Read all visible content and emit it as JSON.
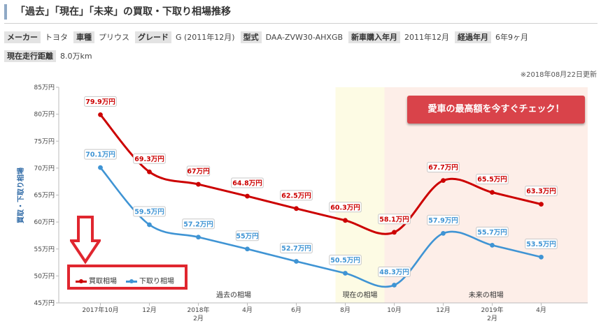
{
  "title": "「過去」「現在」「未来」の買取・下取り相場推移",
  "specs_row1": [
    {
      "key": "メーカー",
      "value": "トヨタ"
    },
    {
      "key": "車種",
      "value": "プリウス"
    },
    {
      "key": "グレード",
      "value": "G (2011年12月)"
    },
    {
      "key": "型式",
      "value": "DAA-ZVW30-AHXGB"
    },
    {
      "key": "新車購入年月",
      "value": "2011年12月"
    },
    {
      "key": "経過年月",
      "value": "6年9ヶ月"
    }
  ],
  "specs_row2": [
    {
      "key": "現在走行距離",
      "value": "8.0万km"
    }
  ],
  "updated": "※2018年08月22日更新",
  "cta_label": "愛車の最高額を今すぐチェック！",
  "colors": {
    "buy": "#cc0000",
    "trade": "#3f94d4",
    "present_band": "#fdfbe4",
    "future_band": "#fdeee8",
    "highlight": "#e0262f",
    "cta": "#d9434a"
  },
  "chart_data": {
    "type": "line",
    "ylabel": "買取・下取り相場",
    "ylim": [
      45,
      85
    ],
    "yticks": [
      45,
      50,
      55,
      60,
      65,
      70,
      75,
      80,
      85
    ],
    "ytick_labels": [
      "45万円",
      "50万円",
      "55万円",
      "60万円",
      "65万円",
      "70万円",
      "75万円",
      "80万円",
      "85万円"
    ],
    "x_labels": [
      {
        "pos": 0,
        "line1": "2017年10月",
        "line2": ""
      },
      {
        "pos": 2,
        "line1": "12月",
        "line2": ""
      },
      {
        "pos": 4,
        "line1": "2018年",
        "line2": "2月"
      },
      {
        "pos": 6,
        "line1": "4月",
        "line2": ""
      },
      {
        "pos": 8,
        "line1": "6月",
        "line2": ""
      },
      {
        "pos": 10,
        "line1": "8月",
        "line2": ""
      },
      {
        "pos": 12,
        "line1": "10月",
        "line2": ""
      },
      {
        "pos": 14,
        "line1": "12月",
        "line2": ""
      },
      {
        "pos": 16,
        "line1": "2019年",
        "line2": "2月"
      },
      {
        "pos": 18,
        "line1": "4月",
        "line2": ""
      }
    ],
    "x_positions": [
      0,
      2,
      4,
      6,
      8,
      10,
      12,
      14,
      16,
      18
    ],
    "series": [
      {
        "name": "買取相場",
        "values": [
          79.9,
          69.3,
          67,
          64.8,
          62.5,
          60.3,
          58.1,
          67.7,
          65.5,
          63.3
        ],
        "labels": [
          "79.9万円",
          "69.3万円",
          "67万円",
          "64.8万円",
          "62.5万円",
          "60.3万円",
          "58.1万円",
          "67.7万円",
          "65.5万円",
          "63.3万円"
        ]
      },
      {
        "name": "下取り相場",
        "values": [
          70.1,
          59.5,
          57.2,
          55,
          52.7,
          50.5,
          48.3,
          57.9,
          55.7,
          53.5
        ],
        "labels": [
          "70.1万円",
          "59.5万円",
          "57.2万円",
          "55万円",
          "52.7万円",
          "50.5万円",
          "48.3万円",
          "57.9万円",
          "55.7万円",
          "53.5万円"
        ]
      }
    ],
    "regions": [
      {
        "label": "過去の相場",
        "from": -1,
        "to": 9.6
      },
      {
        "label": "現在の相場",
        "from": 9.6,
        "to": 11.6
      },
      {
        "label": "未来の相場",
        "from": 11.6,
        "to": 20
      }
    ],
    "legend_position": "bottom-left",
    "grid": false
  }
}
